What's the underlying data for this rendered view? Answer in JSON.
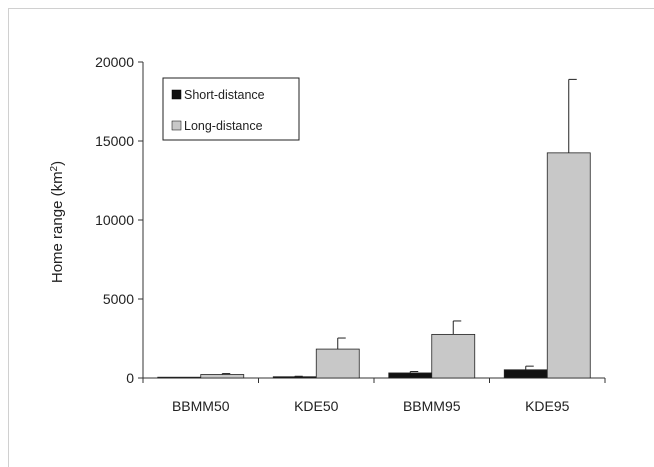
{
  "chart_data": {
    "type": "bar",
    "title": "",
    "xlabel": "",
    "ylabel": "Home range (km",
    "ylabel_sup": "2",
    "ylabel_suffix": ")",
    "ylim": [
      0,
      20000
    ],
    "yticks": [
      0,
      5000,
      10000,
      15000,
      20000
    ],
    "categories": [
      "BBMM50",
      "KDE50",
      "BBMM95",
      "KDE95"
    ],
    "series": [
      {
        "name": "Short-distance",
        "color": "#111111",
        "values": [
          15,
          80,
          320,
          520
        ],
        "errors": [
          10,
          30,
          90,
          230
        ]
      },
      {
        "name": "Long-distance",
        "color": "#c8c8c8",
        "values": [
          220,
          1830,
          2760,
          14250
        ],
        "errors": [
          60,
          700,
          850,
          4650
        ]
      }
    ],
    "legend": "top-left",
    "grid": false
  }
}
